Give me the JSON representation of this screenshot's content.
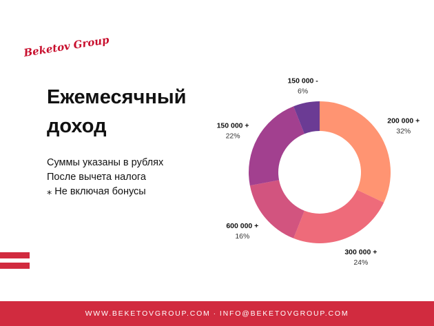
{
  "brand": {
    "logo_text": "Beketov Group",
    "accent_color": "#d12b3f"
  },
  "header": {
    "title": "Ежемесячный доход",
    "notes": [
      "Суммы указаны в рублях",
      "После вычета налога",
      "⁎ Не включая бонусы"
    ]
  },
  "chart_data": {
    "type": "pie",
    "donut": true,
    "title": "",
    "slices": [
      {
        "label": "200 000 +",
        "percent_label": "32%",
        "value": 32,
        "color": "#ff9472"
      },
      {
        "label": "300 000 +",
        "percent_label": "24%",
        "value": 24,
        "color": "#ee6b7a"
      },
      {
        "label": "600 000 +",
        "percent_label": "16%",
        "value": 16,
        "color": "#d2547f"
      },
      {
        "label": "150 000 +",
        "percent_label": "22%",
        "value": 22,
        "color": "#a2408f"
      },
      {
        "label": "150 000 -",
        "percent_label": "6%",
        "value": 6,
        "color": "#6b3b94"
      }
    ]
  },
  "footer": {
    "website": "WWW.BEKETOVGROUP.COM",
    "separator": "·",
    "email": "INFO@BEKETOVGROUP.COM"
  }
}
